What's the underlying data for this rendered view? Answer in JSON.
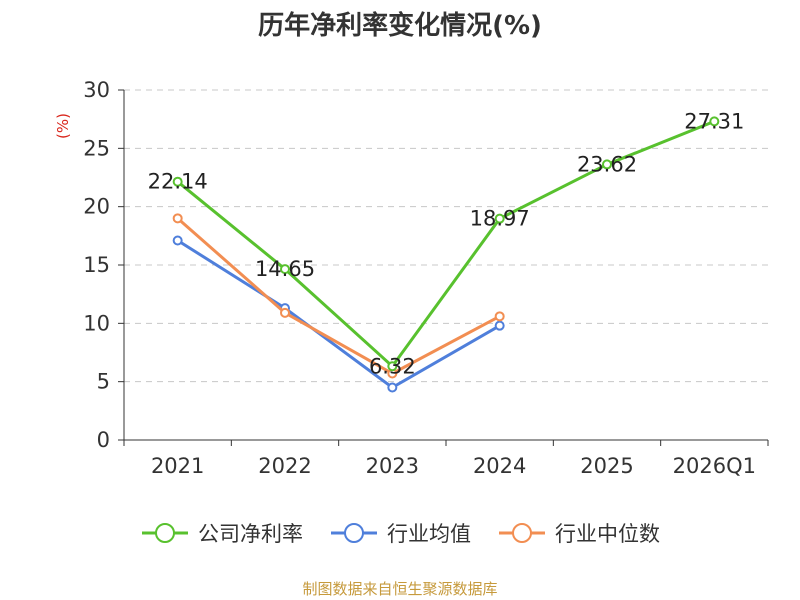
{
  "chart_data": {
    "type": "line",
    "title": "历年净利率变化情况(%)",
    "ylabel": "(%)",
    "xlabel": "",
    "categories": [
      "2021",
      "2022",
      "2023",
      "2024",
      "2025",
      "2026Q1"
    ],
    "ylim": [
      0,
      30
    ],
    "yticks": [
      0,
      5,
      10,
      15,
      20,
      25,
      30
    ],
    "grid": true,
    "legend_position": "bottom",
    "series": [
      {
        "name": "公司净利率",
        "color": "#58c12e",
        "values": [
          22.14,
          14.65,
          6.32,
          18.97,
          23.62,
          27.31
        ],
        "data_labels": [
          "22.14",
          "14.65",
          "6.32",
          "18.97",
          "23.62",
          "27.31"
        ]
      },
      {
        "name": "行业均值",
        "color": "#4f7fdb",
        "values": [
          17.1,
          11.3,
          4.5,
          9.8,
          null,
          null
        ]
      },
      {
        "name": "行业中位数",
        "color": "#f28e52",
        "values": [
          19.0,
          10.9,
          5.7,
          10.6,
          null,
          null
        ]
      }
    ]
  },
  "source_note": "制图数据来自恒生聚源数据库"
}
